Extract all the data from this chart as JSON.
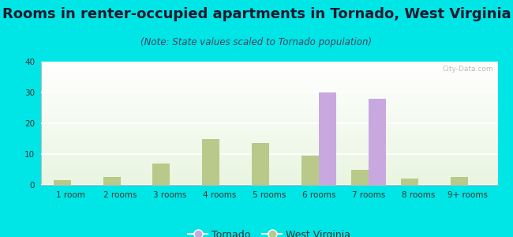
{
  "title": "Rooms in renter-occupied apartments in Tornado, West Virginia",
  "subtitle": "(Note: State values scaled to Tornado population)",
  "categories": [
    "1 room",
    "2 rooms",
    "3 rooms",
    "4 rooms",
    "5 rooms",
    "6 rooms",
    "7 rooms",
    "8 rooms",
    "9+ rooms"
  ],
  "tornado_values": [
    0,
    0,
    0,
    0,
    0,
    30,
    28,
    0,
    0
  ],
  "wv_values": [
    1.5,
    2.5,
    7,
    15,
    13.5,
    9.5,
    5,
    2,
    2.5
  ],
  "tornado_color": "#c9a8e0",
  "wv_color": "#b8c98a",
  "background_color": "#00e5e5",
  "plot_bg_top": "#ffffff",
  "plot_bg_bottom": "#e8f5e0",
  "ylim": [
    0,
    40
  ],
  "yticks": [
    0,
    10,
    20,
    30,
    40
  ],
  "bar_width": 0.35,
  "legend_labels": [
    "Tornado",
    "West Virginia"
  ],
  "title_fontsize": 13,
  "subtitle_fontsize": 8.5,
  "tick_fontsize": 7.5
}
